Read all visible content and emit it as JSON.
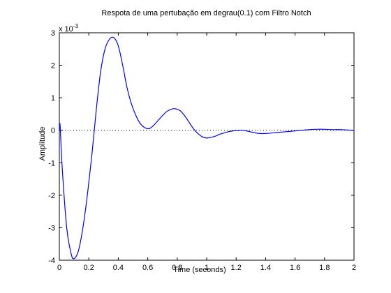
{
  "chart_data": {
    "type": "line",
    "title": "Respota de uma pertubação em degrau(0.1) com Filtro Notch",
    "xlabel": "Time (seconds)",
    "ylabel": "Amplitude",
    "y_exponent_label": "x 10",
    "y_exponent_power": "-3",
    "xlim": [
      0,
      2
    ],
    "ylim": [
      -4,
      3
    ],
    "x_ticks": [
      "0",
      "0.2",
      "0.4",
      "0.6",
      "0.8",
      "1",
      "1.2",
      "1.4",
      "1.6",
      "1.8",
      "2"
    ],
    "y_ticks": [
      "-4",
      "-3",
      "-2",
      "-1",
      "0",
      "1",
      "2",
      "3"
    ],
    "grid": false,
    "reference_line": {
      "y": 0,
      "style": "dotted"
    },
    "series": [
      {
        "color": "#0000ff",
        "x": [
          0,
          0.005,
          0.02,
          0.05,
          0.08,
          0.1,
          0.13,
          0.16,
          0.19,
          0.22,
          0.25,
          0.28,
          0.31,
          0.34,
          0.37,
          0.4,
          0.43,
          0.46,
          0.49,
          0.52,
          0.55,
          0.58,
          0.61,
          0.64,
          0.67,
          0.7,
          0.73,
          0.76,
          0.79,
          0.82,
          0.85,
          0.88,
          0.91,
          0.94,
          0.97,
          1.0,
          1.03,
          1.06,
          1.09,
          1.12,
          1.15,
          1.18,
          1.21,
          1.24,
          1.27,
          1.3,
          1.33,
          1.36,
          1.4,
          1.45,
          1.5,
          1.55,
          1.6,
          1.65,
          1.7,
          1.75,
          1.8,
          1.85,
          1.9,
          1.95,
          2.0
        ],
        "y": [
          0,
          0.15,
          -1.2,
          -3.0,
          -3.8,
          -3.95,
          -3.7,
          -3.0,
          -2.0,
          -0.8,
          0.6,
          1.8,
          2.5,
          2.8,
          2.85,
          2.6,
          2.0,
          1.3,
          0.8,
          0.45,
          0.2,
          0.08,
          0.05,
          0.15,
          0.3,
          0.45,
          0.58,
          0.65,
          0.66,
          0.6,
          0.45,
          0.25,
          0.05,
          -0.1,
          -0.2,
          -0.24,
          -0.22,
          -0.18,
          -0.12,
          -0.08,
          -0.04,
          -0.02,
          -0.01,
          0.0,
          -0.02,
          -0.05,
          -0.08,
          -0.1,
          -0.1,
          -0.08,
          -0.06,
          -0.04,
          -0.02,
          0.0,
          0.02,
          0.03,
          0.03,
          0.02,
          0.02,
          0.01,
          0.0
        ]
      }
    ]
  }
}
